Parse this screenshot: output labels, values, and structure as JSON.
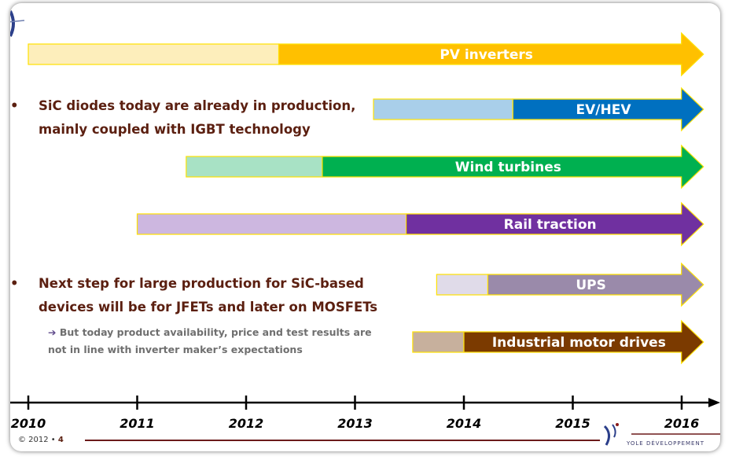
{
  "chart_data": {
    "type": "bar",
    "subtype": "timeline-gantt",
    "x_ticks": [
      "2010",
      "2011",
      "2012",
      "2013",
      "2014",
      "2015",
      "2016"
    ],
    "xlim": [
      2010,
      2016
    ],
    "bars": [
      {
        "label": "PV inverters",
        "start": 2010.0,
        "transition": 2012.3,
        "end": 2016.2,
        "light": "#fdeebb",
        "dark": "#ffc000",
        "text": "#ffffff"
      },
      {
        "label": "EV/HEV",
        "start": 2013.17,
        "transition": 2014.45,
        "end": 2016.2,
        "light": "#a9cfea",
        "dark": "#0070c0",
        "text": "#ffffff"
      },
      {
        "label": "Wind turbines",
        "start": 2011.45,
        "transition": 2012.7,
        "end": 2016.2,
        "light": "#a8e2c5",
        "dark": "#00b050",
        "text": "#ffffff"
      },
      {
        "label": "Rail traction",
        "start": 2011.0,
        "transition": 2013.47,
        "end": 2016.2,
        "light": "#cdb7e0",
        "dark": "#7030a0",
        "text": "#ffffff"
      },
      {
        "label": "UPS",
        "start": 2013.75,
        "transition": 2014.22,
        "end": 2016.2,
        "light": "#e0dbe9",
        "dark": "#9a8aaa",
        "text": "#ffffff"
      },
      {
        "label": "Industrial motor drives",
        "start": 2013.53,
        "transition": 2014.0,
        "end": 2016.2,
        "light": "#c7b09d",
        "dark": "#7b3a00",
        "text": "#ffffff"
      }
    ]
  },
  "bullets": {
    "b1_line1": "SiC diodes today are already in production,",
    "b1_line2": "mainly coupled with IGBT technology",
    "b2_line1": "Next step for large production for SiC-based",
    "b2_line2": "devices will be for JFETs and later on MOSFETs",
    "sub_line1": "But today product availability, price and test results are",
    "sub_line2": "not in line with inverter maker’s expectations",
    "bullet_glyph": "•",
    "arrow_glyph": "➔"
  },
  "footer": {
    "copyright": "© 2012 •",
    "page": "4",
    "logo_text": "YOLE DÉVELOPPEMENT"
  },
  "colors": {
    "axis": "#000000",
    "footer_line": "#6b1a1a",
    "bullet_text": "#5b1f10"
  }
}
